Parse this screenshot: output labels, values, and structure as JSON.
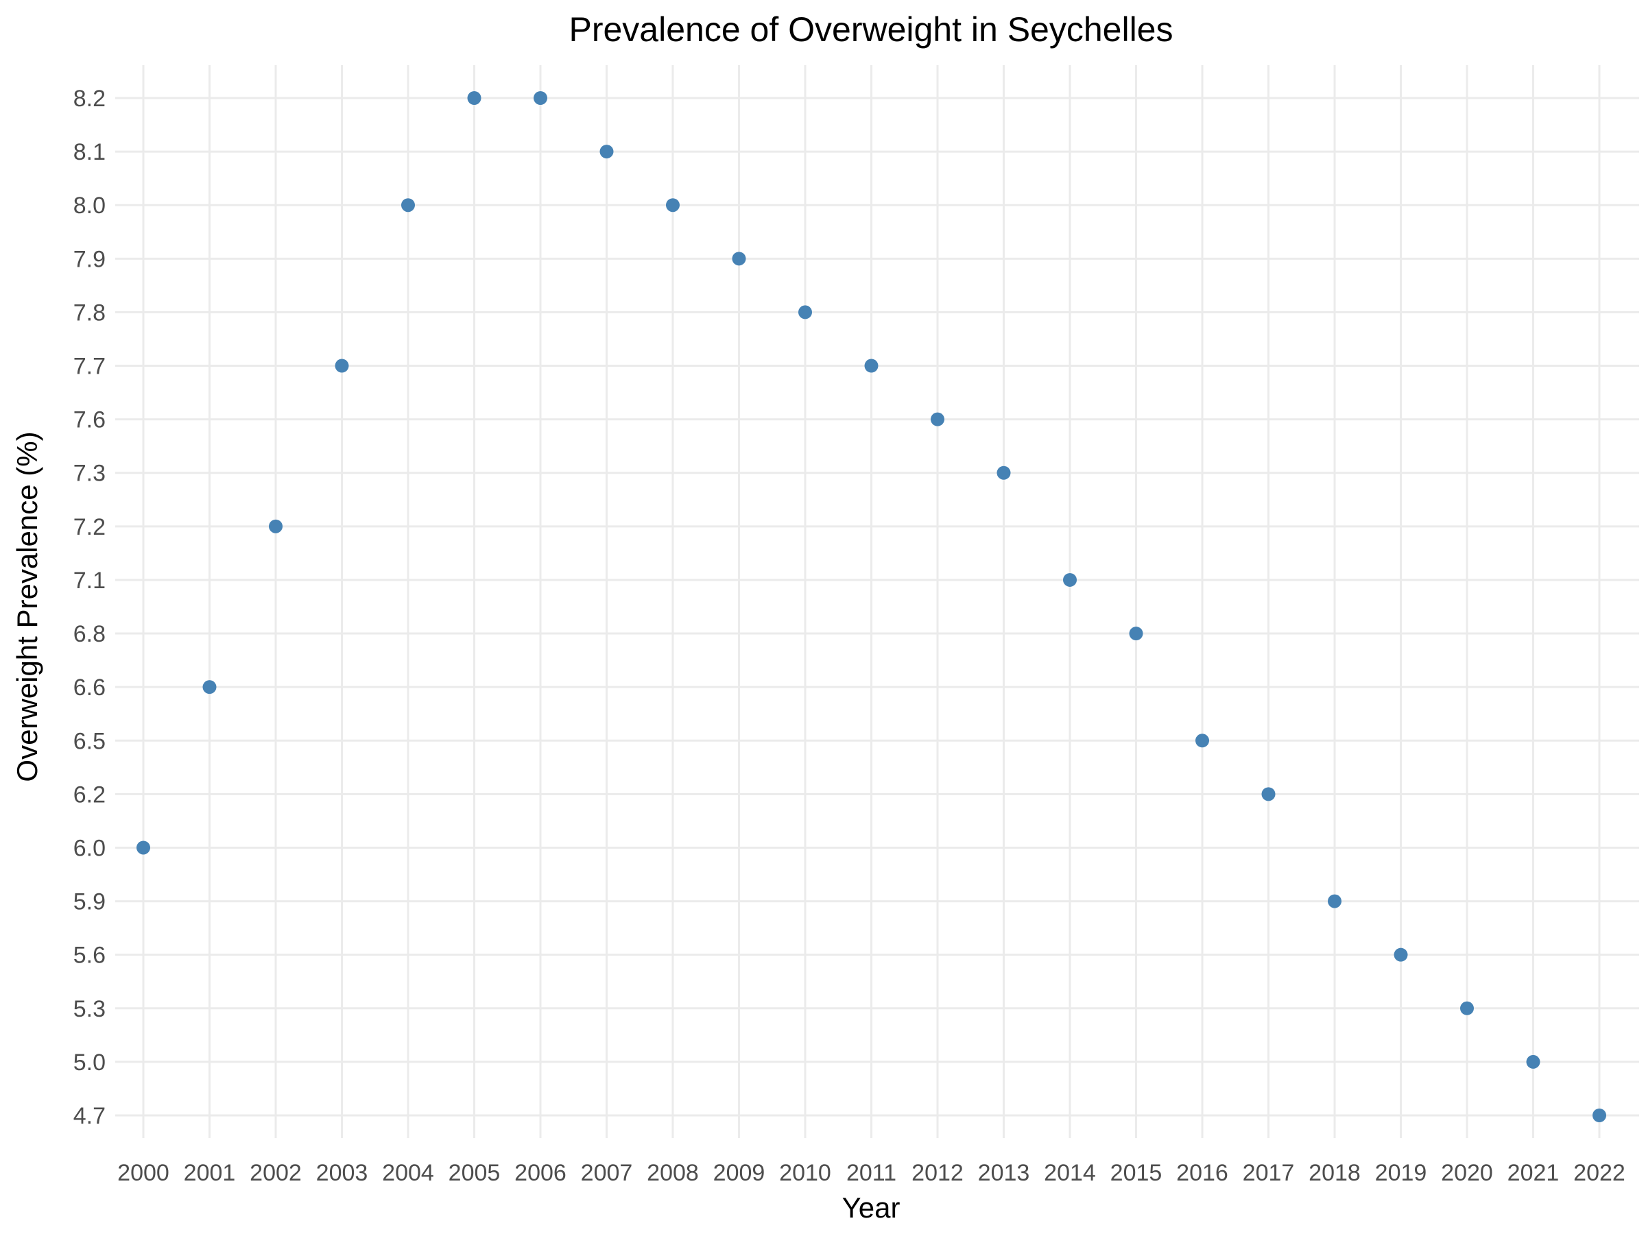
{
  "chart_data": {
    "type": "scatter",
    "title": "Prevalence of Overweight in Seychelles",
    "xlabel": "Year",
    "ylabel": "Overweight Prevalence (%)",
    "categories": [
      "2000",
      "2001",
      "2002",
      "2003",
      "2004",
      "2005",
      "2006",
      "2007",
      "2008",
      "2009",
      "2010",
      "2011",
      "2012",
      "2013",
      "2014",
      "2015",
      "2016",
      "2017",
      "2018",
      "2019",
      "2020",
      "2021",
      "2022"
    ],
    "y_tick_labels": [
      "8.2",
      "8.1",
      "8.0",
      "7.9",
      "7.8",
      "7.7",
      "7.6",
      "7.3",
      "7.2",
      "7.1",
      "6.8",
      "6.6",
      "6.5",
      "6.2",
      "6.0",
      "5.9",
      "5.6",
      "5.3",
      "5.0",
      "4.7"
    ],
    "series": [
      {
        "name": "Overweight Prevalence",
        "values": [
          "6.0",
          "6.6",
          "7.2",
          "7.7",
          "8.0",
          "8.2",
          "8.2",
          "8.1",
          "8.0",
          "7.9",
          "7.8",
          "7.7",
          "7.6",
          "7.3",
          "7.1",
          "6.8",
          "6.5",
          "6.2",
          "5.9",
          "5.6",
          "5.3",
          "5.0",
          "4.7"
        ]
      }
    ],
    "y_axis_note": "discrete (categorical) y-axis",
    "grid": true,
    "colors": {
      "point": "#4682b4",
      "grid": "#ebebeb",
      "tick_text": "#4d4d4d",
      "title_text": "#000000",
      "background": "#ffffff"
    }
  }
}
